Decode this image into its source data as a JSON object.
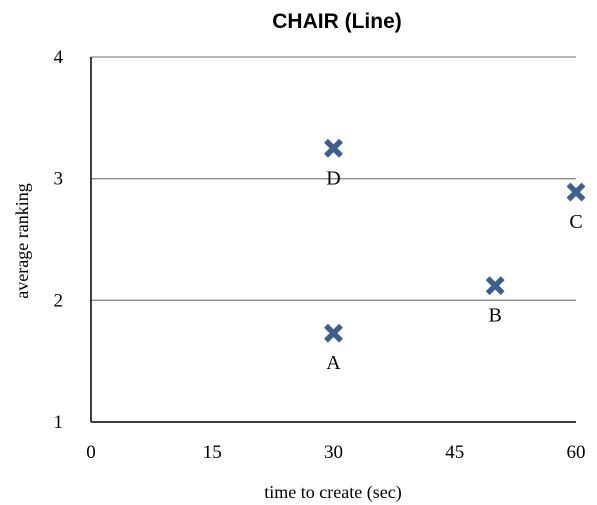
{
  "chart_data": {
    "type": "scatter",
    "title": "CHAIR (Line)",
    "xlabel": "time to create (sec)",
    "ylabel": "average ranking",
    "xlim": [
      0,
      60
    ],
    "ylim": [
      1,
      4
    ],
    "xticks": [
      "0",
      "15",
      "30",
      "45",
      "60"
    ],
    "yticks": [
      "1",
      "2",
      "3",
      "4"
    ],
    "grid": "horizontal",
    "marker": "x",
    "marker_color": "#3d5f8f",
    "points": [
      {
        "label": "A",
        "x": 30,
        "y": 1.73,
        "label_position": "below"
      },
      {
        "label": "B",
        "x": 50,
        "y": 2.12,
        "label_position": "below"
      },
      {
        "label": "C",
        "x": 60,
        "y": 2.89,
        "label_position": "below"
      },
      {
        "label": "D",
        "x": 30,
        "y": 3.25,
        "label_position": "below"
      }
    ]
  }
}
